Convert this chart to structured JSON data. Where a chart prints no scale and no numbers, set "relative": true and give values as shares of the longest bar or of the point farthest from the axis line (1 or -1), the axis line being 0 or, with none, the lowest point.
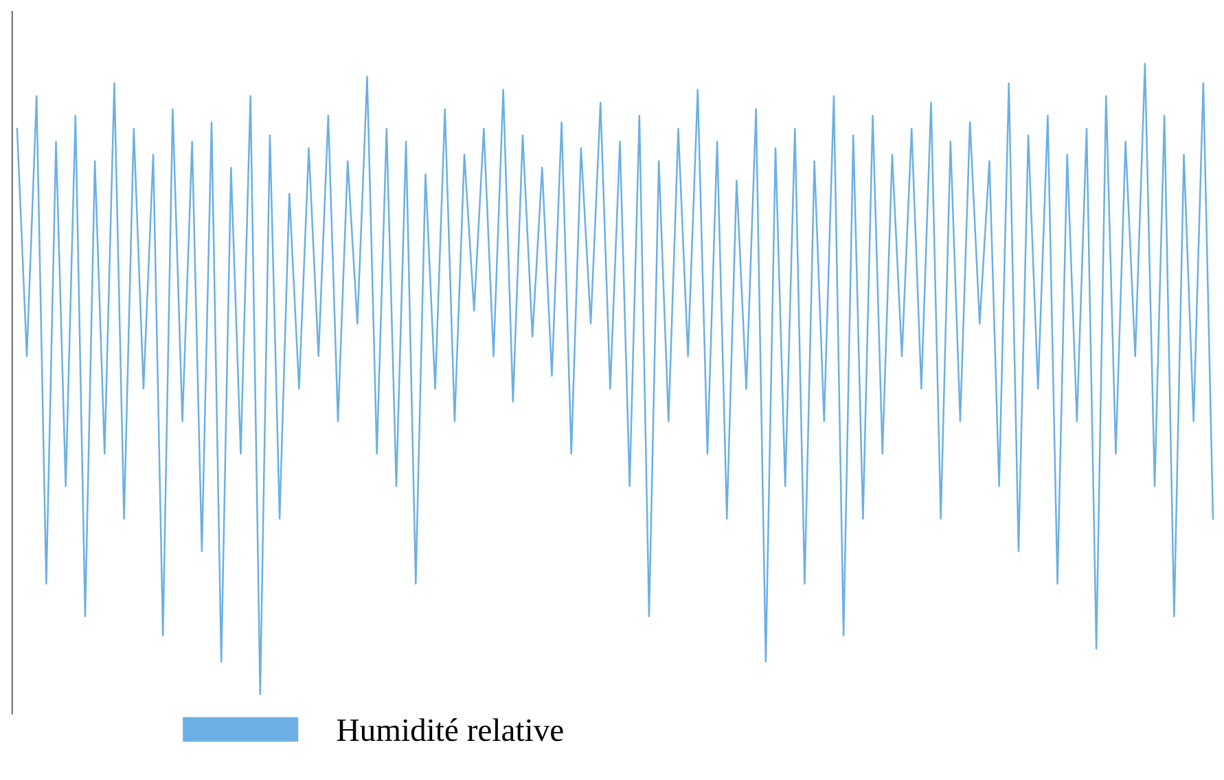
{
  "chart_data": {
    "type": "line",
    "relative": true,
    "legend": "bottom",
    "categories": [
      null,
      null,
      null,
      null,
      null,
      null,
      null,
      null,
      null,
      null,
      null,
      null,
      null,
      null,
      null,
      null,
      null,
      null,
      null,
      null,
      null,
      null,
      null,
      null,
      null,
      null,
      null,
      null,
      null,
      null,
      null,
      null,
      null,
      null,
      null,
      null,
      null,
      null,
      null,
      null,
      null,
      null,
      null,
      null,
      null,
      null,
      null,
      null,
      null,
      null,
      null,
      null,
      null,
      null,
      null,
      null,
      null,
      null,
      null,
      null,
      null,
      null,
      null,
      null,
      null,
      null,
      null,
      null,
      null,
      null,
      null,
      null,
      null,
      null,
      null,
      null,
      null,
      null,
      null,
      null,
      null,
      null,
      null,
      null,
      null,
      null,
      null,
      null,
      null,
      null,
      null,
      null,
      null,
      null,
      null,
      null,
      null,
      null,
      null,
      null,
      null,
      null,
      null,
      null,
      null,
      null,
      null,
      null,
      null,
      null,
      null,
      null,
      null,
      null,
      null,
      null,
      null,
      null,
      null,
      null,
      null,
      null,
      null,
      null
    ],
    "series": [
      {
        "name": "Humidité relative",
        "color": "#6ab0e4",
        "values": [
          0.9,
          0.55,
          0.95,
          0.2,
          0.88,
          0.35,
          0.92,
          0.15,
          0.85,
          0.4,
          0.97,
          0.3,
          0.9,
          0.5,
          0.86,
          0.12,
          0.93,
          0.45,
          0.88,
          0.25,
          0.91,
          0.08,
          0.84,
          0.4,
          0.95,
          0.03,
          0.89,
          0.3,
          0.8,
          0.5,
          0.87,
          0.55,
          0.92,
          0.45,
          0.85,
          0.6,
          0.98,
          0.4,
          0.9,
          0.35,
          0.88,
          0.2,
          0.83,
          0.5,
          0.93,
          0.45,
          0.86,
          0.62,
          0.9,
          0.55,
          0.96,
          0.48,
          0.89,
          0.58,
          0.84,
          0.52,
          0.91,
          0.4,
          0.87,
          0.6,
          0.94,
          0.5,
          0.88,
          0.35,
          0.92,
          0.15,
          0.85,
          0.45,
          0.9,
          0.55,
          0.96,
          0.4,
          0.88,
          0.3,
          0.82,
          0.5,
          0.93,
          0.08,
          0.87,
          0.35,
          0.9,
          0.2,
          0.85,
          0.45,
          0.95,
          0.12,
          0.89,
          0.3,
          0.92,
          0.4,
          0.86,
          0.55,
          0.9,
          0.5,
          0.94,
          0.3,
          0.88,
          0.45,
          0.91,
          0.6,
          0.85,
          0.35,
          0.97,
          0.25,
          0.89,
          0.5,
          0.92,
          0.2,
          0.86,
          0.45,
          0.9,
          0.1,
          0.95,
          0.4,
          0.88,
          0.55,
          1.0,
          0.35,
          0.92,
          0.15,
          0.86,
          0.45,
          0.97,
          0.3
        ]
      }
    ]
  }
}
